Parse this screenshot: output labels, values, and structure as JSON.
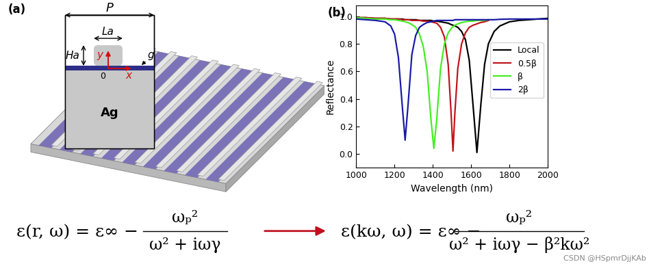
{
  "chart_data": {
    "type": "line",
    "panel_label": "(b)",
    "x_label": "Wavelength (nm)",
    "y_label": "Reflectance",
    "x": [
      1000,
      1050,
      1100,
      1150,
      1180,
      1200,
      1220,
      1240,
      1255,
      1270,
      1290,
      1310,
      1330,
      1350,
      1370,
      1390,
      1405,
      1420,
      1440,
      1460,
      1480,
      1495,
      1505,
      1515,
      1530,
      1550,
      1570,
      1590,
      1610,
      1630,
      1650,
      1670,
      1690,
      1720,
      1750,
      1800,
      1850,
      1900,
      1950,
      2000
    ],
    "series": [
      {
        "name": "Local",
        "color": "#000000",
        "values": [
          0.99,
          0.99,
          0.985,
          0.985,
          0.98,
          0.98,
          0.98,
          0.98,
          0.975,
          0.975,
          0.975,
          0.975,
          0.97,
          0.97,
          0.97,
          0.97,
          0.965,
          0.965,
          0.96,
          0.955,
          0.95,
          0.94,
          0.935,
          0.93,
          0.92,
          0.89,
          0.83,
          0.68,
          0.35,
          0.01,
          0.35,
          0.65,
          0.8,
          0.89,
          0.93,
          0.96,
          0.97,
          0.975,
          0.98,
          0.985
        ]
      },
      {
        "name": "0.5β",
        "color": "#c0141c",
        "values": [
          0.99,
          0.99,
          0.985,
          0.985,
          0.98,
          0.98,
          0.98,
          0.975,
          0.975,
          0.975,
          0.97,
          0.97,
          0.97,
          0.965,
          0.965,
          0.96,
          0.955,
          0.95,
          0.92,
          0.85,
          0.65,
          0.3,
          0.02,
          0.3,
          0.62,
          0.8,
          0.88,
          0.92,
          0.935,
          0.945,
          0.955,
          0.96,
          0.97,
          null,
          null,
          null,
          null,
          null,
          null,
          null
        ]
      },
      {
        "name": "β",
        "color": "#44ee22",
        "values": [
          0.99,
          0.985,
          0.98,
          0.98,
          0.975,
          0.975,
          0.97,
          0.965,
          0.96,
          0.955,
          0.94,
          0.92,
          0.87,
          0.78,
          0.6,
          0.25,
          0.04,
          0.25,
          0.62,
          0.8,
          0.88,
          0.91,
          0.925,
          0.935,
          0.945,
          0.955,
          0.96,
          0.965,
          0.965,
          0.97,
          0.97,
          0.97,
          0.975,
          null,
          null,
          null,
          null,
          null,
          null,
          null
        ]
      },
      {
        "name": "2β",
        "color": "#1a1aa8",
        "values": [
          0.98,
          0.975,
          0.97,
          0.96,
          0.93,
          0.87,
          0.7,
          0.35,
          0.1,
          0.35,
          0.72,
          0.86,
          0.92,
          0.94,
          0.955,
          0.96,
          0.965,
          0.97,
          0.97,
          0.97,
          0.97,
          0.97,
          0.97,
          0.975,
          0.975,
          0.975,
          0.975,
          0.975,
          0.975,
          0.975,
          0.975,
          0.975,
          0.975,
          0.975,
          0.978,
          0.98,
          0.98,
          0.98,
          0.98,
          0.98
        ]
      }
    ],
    "xlim": [
      1000,
      2000
    ],
    "xticks": [
      1000,
      1200,
      1400,
      1600,
      1800,
      2000
    ],
    "ylim": [
      -0.1,
      1.08
    ],
    "yticks": [
      {
        "value": 0.0,
        "label": "0.0"
      },
      {
        "value": 0.2,
        "label": "0.2"
      },
      {
        "value": 0.4,
        "label": "0.4"
      },
      {
        "value": 0.6,
        "label": "0.6"
      },
      {
        "value": 0.8,
        "label": "0.8"
      },
      {
        "value": 1.0,
        "label": "1.0"
      }
    ],
    "legend": "center right",
    "grid": false
  },
  "panel_a": {
    "label": "(a)",
    "period": "P",
    "width": "La",
    "height": "Ha",
    "gap": "g",
    "axis_y": "y",
    "axis_x": "x",
    "origin": "0",
    "material": "Ag"
  },
  "equations": [
    {
      "lhs": "ε(r, ω) = ε∞ −",
      "numerator": "ωₚ²",
      "denominator": "ω² + iωγ"
    },
    {
      "lhs": "ε(kω, ω) = ε∞ −",
      "numerator": "ωₚ²",
      "denominator": "ω² + iωγ − β²kω²"
    }
  ],
  "watermark": "CSDN @HSpmrDjjKAb"
}
